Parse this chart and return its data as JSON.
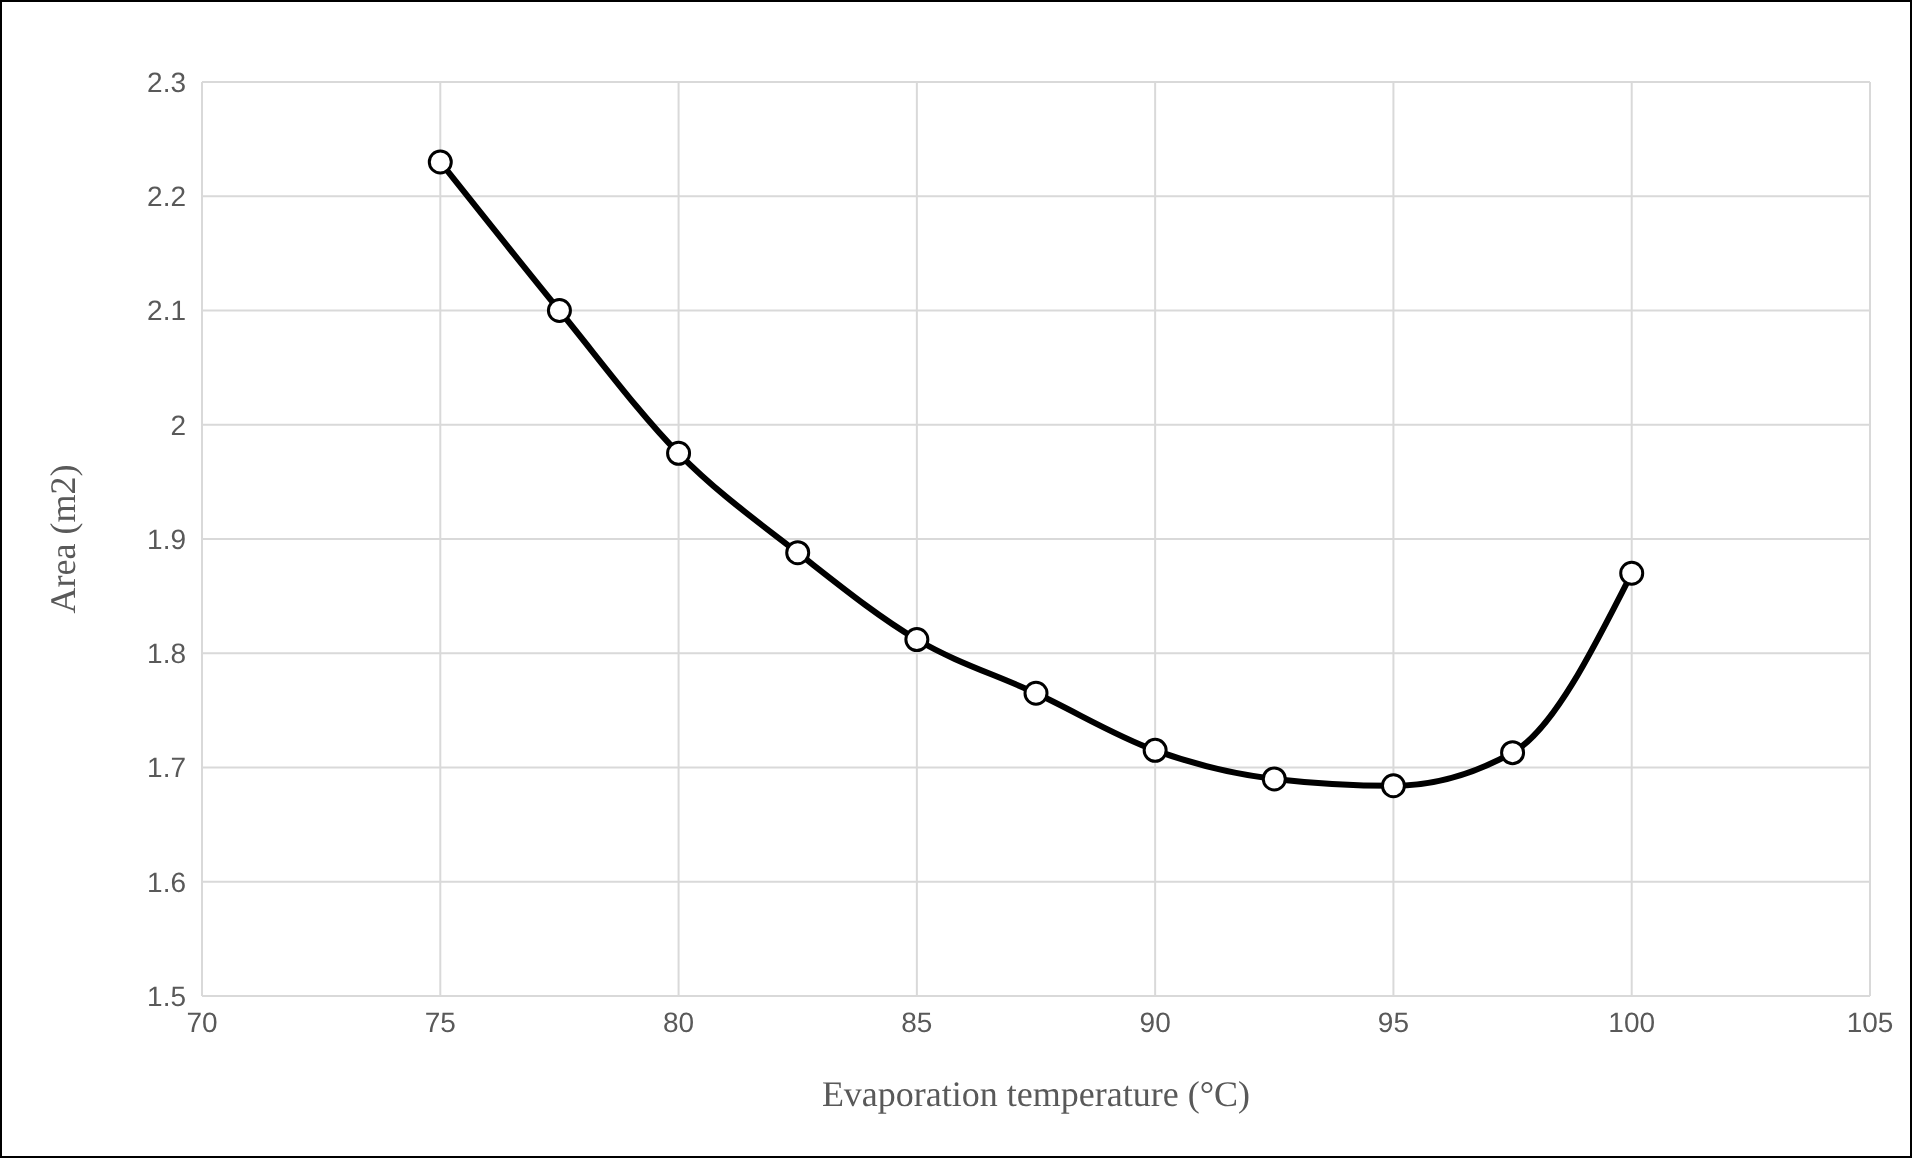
{
  "chart_data": {
    "type": "line",
    "xlabel": "Evaporation temperature (°C)",
    "ylabel": "Area (m2)",
    "x": [
      75,
      77.5,
      80,
      82.5,
      85,
      87.5,
      90,
      92.5,
      95,
      97.5,
      100
    ],
    "series": [
      {
        "color": "#000000",
        "values": [
          2.23,
          2.1,
          1.975,
          1.888,
          1.812,
          1.765,
          1.715,
          1.69,
          1.684,
          1.713,
          1.87
        ]
      }
    ],
    "xlim": [
      70,
      105
    ],
    "xticks": [
      70,
      75,
      80,
      85,
      90,
      95,
      100,
      105
    ],
    "ylim": [
      1.5,
      2.3
    ],
    "yticks": [
      1.5,
      1.6,
      1.7,
      1.8,
      1.9,
      2,
      2.1,
      2.2,
      2.3
    ],
    "grid": true,
    "marker": "circle",
    "line_style": "solid",
    "legend": false
  }
}
